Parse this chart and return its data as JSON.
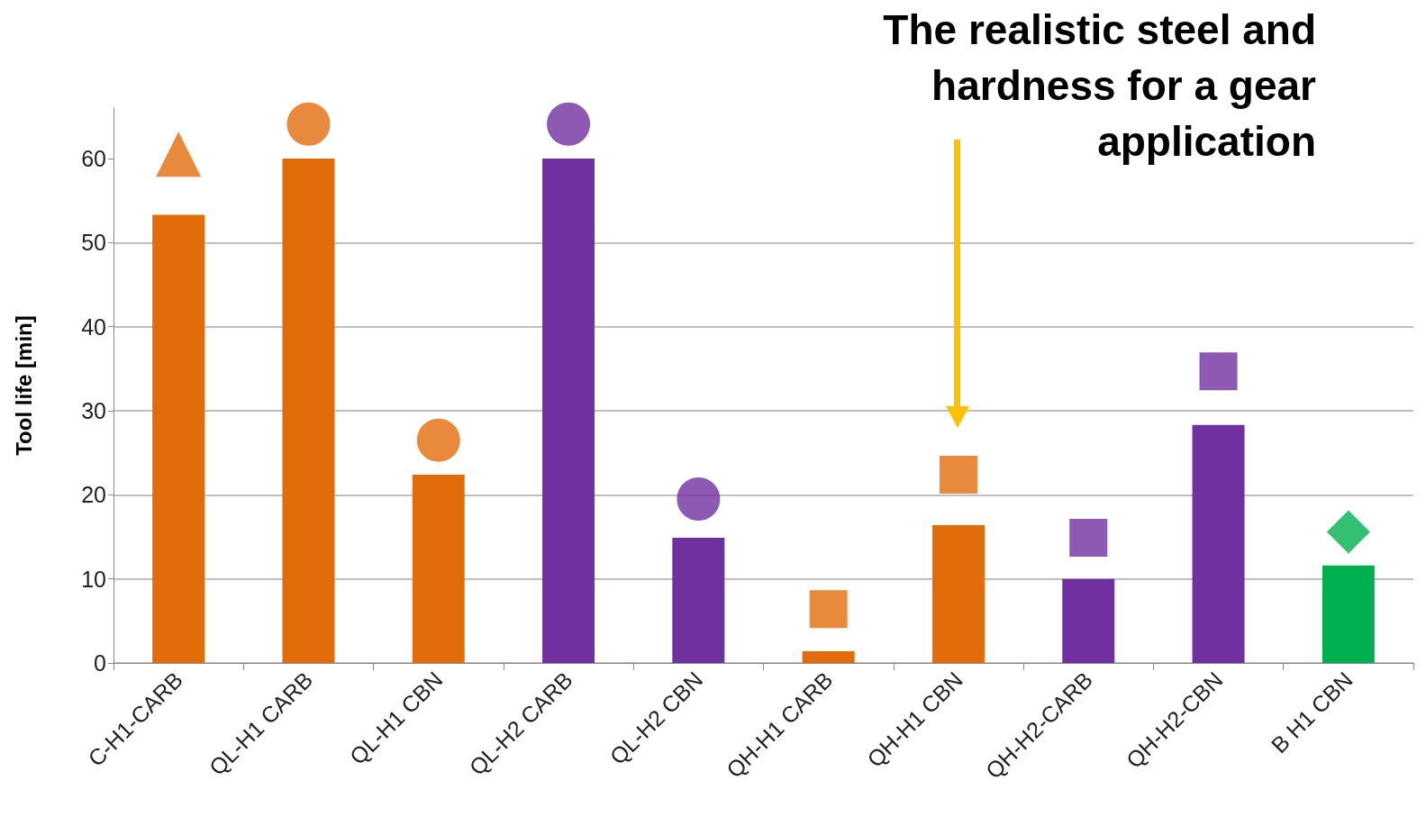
{
  "chart_data": {
    "type": "bar",
    "ylabel": "Tool life [min]",
    "categories": [
      "C-H1-CARB",
      "QL-H1 CARB",
      "QL-H1 CBN",
      "QL-H2 CARB",
      "QL-H2 CBN",
      "QH-H1 CARB",
      "QH-H1 CBN",
      "QH-H2-CARB",
      "QH-H2-CBN",
      "B H1 CBN"
    ],
    "series": [
      {
        "type": "bar",
        "values": [
          53.3,
          60,
          22.4,
          60,
          14.9,
          1.4,
          16.4,
          10,
          28.3,
          11.6
        ],
        "colors": [
          "#e36c0a",
          "#e36c0a",
          "#e36c0a",
          "#7030a0",
          "#7030a0",
          "#e36c0a",
          "#e36c0a",
          "#7030a0",
          "#7030a0",
          "#00b050"
        ]
      },
      {
        "type": "scatter",
        "marker": "triangle",
        "x": [
          "C-H1-CARB"
        ],
        "values": [
          60.5
        ],
        "colors": [
          "#e36c0a"
        ]
      },
      {
        "type": "scatter",
        "marker": "circle",
        "x": [
          "QL-H1 CARB",
          "QL-H1 CBN",
          "QL-H2 CARB",
          "QL-H2 CBN"
        ],
        "values": [
          64.1,
          26.5,
          64.1,
          19.5
        ],
        "colors": [
          "#e36c0a",
          "#e36c0a",
          "#7030a0",
          "#7030a0"
        ]
      },
      {
        "type": "scatter",
        "marker": "square",
        "x": [
          "QH-H1 CARB",
          "QH-H1 CBN",
          "QH-H2-CARB",
          "QH-H2-CBN"
        ],
        "values": [
          6.4,
          22.4,
          14.9,
          34.7
        ],
        "colors": [
          "#e36c0a",
          "#e36c0a",
          "#7030a0",
          "#7030a0"
        ]
      },
      {
        "type": "scatter",
        "marker": "diamond",
        "x": [
          "B H1 CBN"
        ],
        "values": [
          15.6
        ],
        "colors": [
          "#00b050"
        ]
      }
    ],
    "ylim": [
      0,
      66
    ],
    "yticks": [
      0,
      10,
      20,
      30,
      40,
      50,
      60
    ],
    "grid": "y",
    "annotations": [
      "The realistic steel and hardness for a gear application"
    ]
  }
}
